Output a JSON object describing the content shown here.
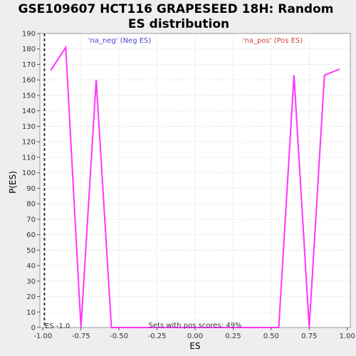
{
  "chart_data": {
    "type": "line",
    "title_lines": [
      "GSE109607 HCT116 GRAPESEED 18H: Random",
      "ES distribution"
    ],
    "xlabel": "ES",
    "ylabel": "P(ES)",
    "xlim": [
      -1.02,
      1.02
    ],
    "ylim": [
      0,
      190
    ],
    "x_ticks": [
      -1.0,
      -0.75,
      -0.5,
      -0.25,
      0.0,
      0.25,
      0.5,
      0.75,
      1.0
    ],
    "x_tick_labels": [
      "-1.00",
      "-0.75",
      "-0.50",
      "-0.25",
      "0.00",
      "0.25",
      "0.50",
      "0.75",
      "1.00"
    ],
    "y_ticks": [
      0,
      10,
      20,
      30,
      40,
      50,
      60,
      70,
      80,
      90,
      100,
      110,
      120,
      130,
      140,
      150,
      160,
      170,
      180,
      190
    ],
    "grid": true,
    "series": [
      {
        "color": "#ff33ff",
        "x": [
          -0.95,
          -0.85,
          -0.75,
          -0.65,
          -0.55,
          -0.45,
          -0.35,
          -0.25,
          -0.15,
          -0.05,
          0.05,
          0.15,
          0.25,
          0.35,
          0.45,
          0.55,
          0.65,
          0.75,
          0.85,
          0.95
        ],
        "y": [
          166,
          181,
          0,
          160,
          0,
          0,
          0,
          0,
          0,
          0,
          0,
          0,
          0,
          0,
          0,
          0,
          163,
          0,
          163,
          167
        ]
      }
    ],
    "reference_line": {
      "x": -0.99,
      "label": "ES -1.0",
      "color": "#333333"
    },
    "annotations": [
      {
        "text": "'na_neg' (Neg ES)",
        "color": "#4444cc"
      },
      {
        "text": "'na_pos' (Pos ES)",
        "color": "#cc4444"
      },
      {
        "text": "Sets with pos scores: 49%",
        "color": "#333333"
      }
    ]
  }
}
